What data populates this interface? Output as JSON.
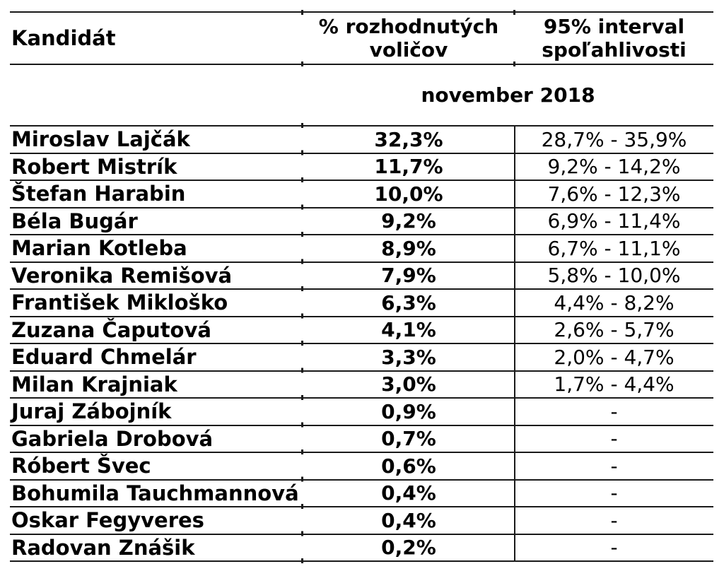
{
  "table": {
    "headers": {
      "candidate": "Kandidát",
      "percent": "% rozhodnutých voličov",
      "interval": "95% interval spoľahlivosti"
    },
    "period_label": "november 2018",
    "rows": [
      {
        "name": "Miroslav Lajčák",
        "percent": "32,3%",
        "interval": "28,7% - 35,9%"
      },
      {
        "name": "Robert Mistrík",
        "percent": "11,7%",
        "interval": "9,2% - 14,2%"
      },
      {
        "name": "Štefan Harabin",
        "percent": "10,0%",
        "interval": "7,6% - 12,3%"
      },
      {
        "name": "Béla Bugár",
        "percent": "9,2%",
        "interval": "6,9% - 11,4%"
      },
      {
        "name": "Marian Kotleba",
        "percent": "8,9%",
        "interval": "6,7% - 11,1%"
      },
      {
        "name": "Veronika Remišová",
        "percent": "7,9%",
        "interval": "5,8% - 10,0%"
      },
      {
        "name": "František Mikloško",
        "percent": "6,3%",
        "interval": "4,4% - 8,2%"
      },
      {
        "name": "Zuzana Čaputová",
        "percent": "4,1%",
        "interval": "2,6% - 5,7%"
      },
      {
        "name": "Eduard Chmelár",
        "percent": "3,3%",
        "interval": "2,0% - 4,7%"
      },
      {
        "name": "Milan Krajniak",
        "percent": "3,0%",
        "interval": "1,7% - 4,4%"
      },
      {
        "name": "Juraj Zábojník",
        "percent": "0,9%",
        "interval": "-"
      },
      {
        "name": "Gabriela Drobová",
        "percent": "0,7%",
        "interval": "-"
      },
      {
        "name": "Róbert Švec",
        "percent": "0,6%",
        "interval": "-"
      },
      {
        "name": "Bohumila Tauchmannová",
        "percent": "0,4%",
        "interval": "-"
      },
      {
        "name": "Oskar Fegyveres",
        "percent": "0,4%",
        "interval": "-"
      },
      {
        "name": "Radovan Znášik",
        "percent": "0,2%",
        "interval": "-"
      }
    ],
    "colors": {
      "text": "#000000",
      "grid_line": "#1a1a1a",
      "background": "#ffffff"
    }
  }
}
